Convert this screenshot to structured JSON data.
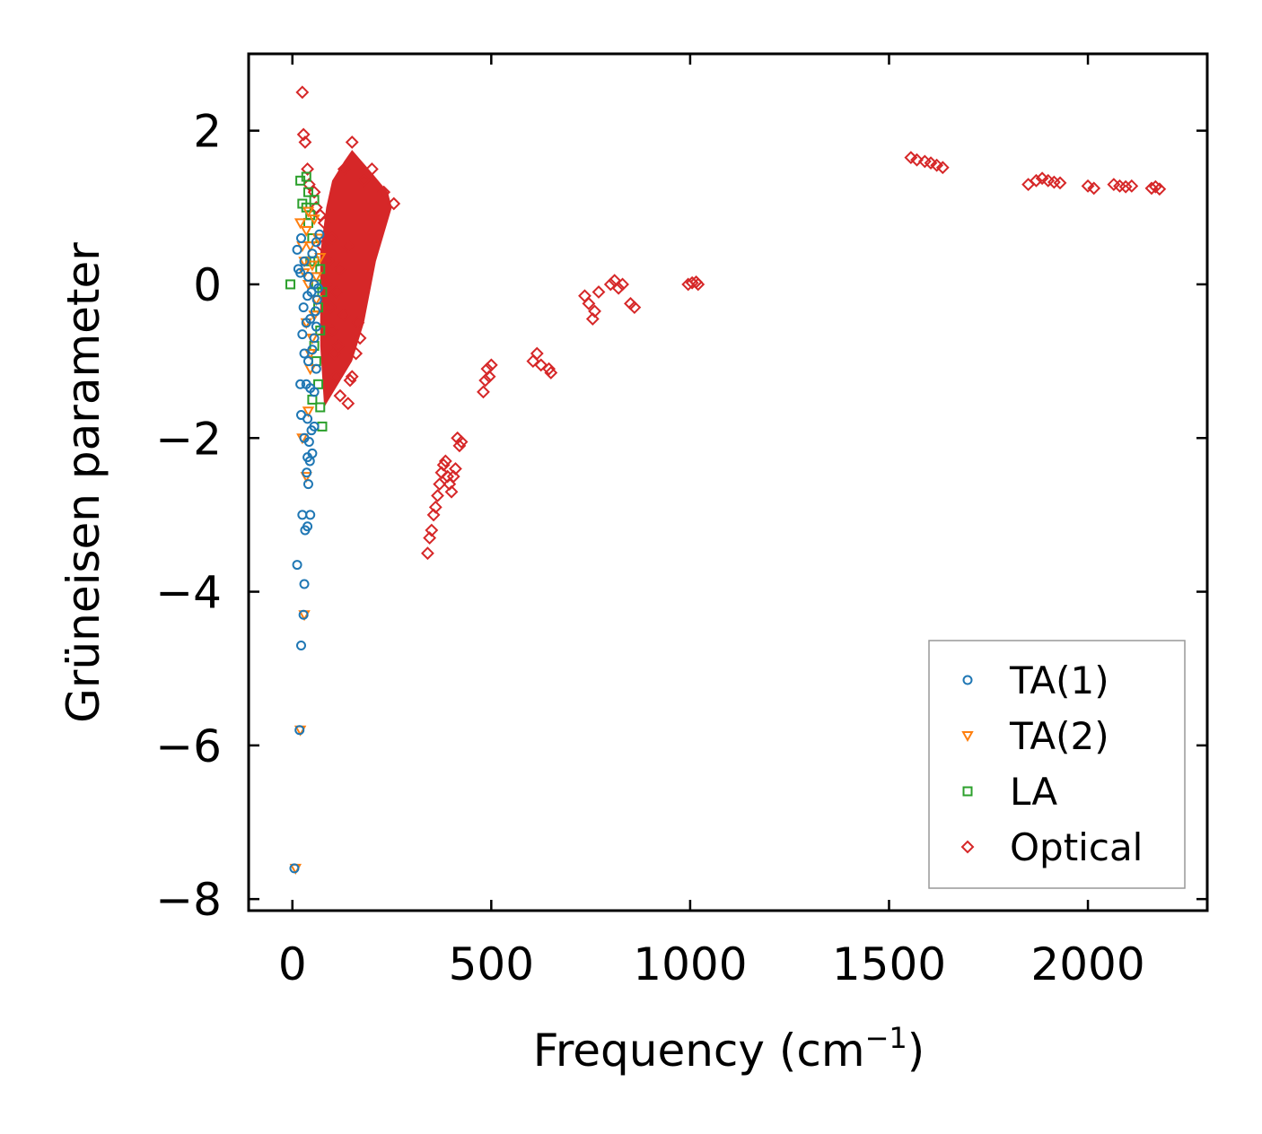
{
  "chart_data": {
    "type": "scatter",
    "xlabel": "Frequency (cm",
    "xlabel_sup": "−1",
    "xlabel_end": ")",
    "ylabel": "Grüneisen parameter",
    "xlim": [
      -110,
      2300
    ],
    "ylim": [
      -8.15,
      3.0
    ],
    "xticks": [
      0,
      500,
      1000,
      1500,
      2000
    ],
    "xtick_labels": [
      "0",
      "500",
      "1000",
      "1500",
      "2000"
    ],
    "yticks": [
      -8,
      -6,
      -4,
      -2,
      0,
      2
    ],
    "ytick_labels": [
      "−8",
      "−6",
      "−4",
      "−2",
      "0",
      "2"
    ],
    "legend_position": "bottom-right",
    "series": [
      {
        "name": "TA(1)",
        "marker": "circle",
        "color": "#1f77b4",
        "points": [
          [
            5,
            -7.6
          ],
          [
            18,
            -5.8
          ],
          [
            22,
            -4.7
          ],
          [
            30,
            -3.9
          ],
          [
            12,
            -3.65
          ],
          [
            28,
            -4.3
          ],
          [
            25,
            -3.0
          ],
          [
            32,
            -3.2
          ],
          [
            38,
            -3.15
          ],
          [
            45,
            -3.0
          ],
          [
            40,
            -2.6
          ],
          [
            36,
            -2.45
          ],
          [
            44,
            -2.3
          ],
          [
            50,
            -2.2
          ],
          [
            38,
            -2.25
          ],
          [
            30,
            -2.0
          ],
          [
            42,
            -2.05
          ],
          [
            48,
            -1.9
          ],
          [
            55,
            -1.85
          ],
          [
            22,
            -1.7
          ],
          [
            38,
            -1.75
          ],
          [
            20,
            -1.3
          ],
          [
            35,
            -1.3
          ],
          [
            45,
            -1.35
          ],
          [
            55,
            -1.4
          ],
          [
            60,
            -1.1
          ],
          [
            30,
            -0.9
          ],
          [
            40,
            -1.0
          ],
          [
            50,
            -0.85
          ],
          [
            55,
            -0.7
          ],
          [
            60,
            -0.55
          ],
          [
            25,
            -0.65
          ],
          [
            35,
            -0.5
          ],
          [
            45,
            -0.45
          ],
          [
            58,
            -0.35
          ],
          [
            62,
            -0.2
          ],
          [
            28,
            -0.3
          ],
          [
            38,
            -0.15
          ],
          [
            48,
            -0.1
          ],
          [
            65,
            -0.05
          ],
          [
            55,
            0.0
          ],
          [
            20,
            0.15
          ],
          [
            30,
            0.3
          ],
          [
            40,
            0.1
          ],
          [
            12,
            0.45
          ],
          [
            22,
            0.6
          ],
          [
            50,
            0.4
          ],
          [
            60,
            0.55
          ],
          [
            68,
            0.65
          ],
          [
            15,
            0.2
          ]
        ]
      },
      {
        "name": "TA(2)",
        "marker": "triangle-down",
        "color": "#ff7f0e",
        "points": [
          [
            8,
            -7.6
          ],
          [
            20,
            -5.8
          ],
          [
            30,
            -4.3
          ],
          [
            35,
            -2.5
          ],
          [
            25,
            -2.0
          ],
          [
            40,
            -1.65
          ],
          [
            45,
            -1.1
          ],
          [
            50,
            -0.7
          ],
          [
            55,
            -0.4
          ],
          [
            35,
            -0.5
          ],
          [
            40,
            0.0
          ],
          [
            60,
            0.1
          ],
          [
            30,
            0.3
          ],
          [
            25,
            0.5
          ],
          [
            45,
            0.5
          ],
          [
            65,
            0.6
          ],
          [
            20,
            0.8
          ],
          [
            35,
            0.7
          ],
          [
            55,
            0.85
          ],
          [
            40,
            0.95
          ],
          [
            30,
            0.15
          ],
          [
            50,
            0.25
          ],
          [
            70,
            0.35
          ],
          [
            60,
            -0.2
          ],
          [
            45,
            -0.9
          ]
        ]
      },
      {
        "name": "LA",
        "marker": "square",
        "color": "#2ca02c",
        "points": [
          [
            -5,
            0.0
          ],
          [
            20,
            1.35
          ],
          [
            25,
            1.05
          ],
          [
            35,
            1.0
          ],
          [
            40,
            1.2
          ],
          [
            45,
            0.9
          ],
          [
            50,
            0.6
          ],
          [
            55,
            0.3
          ],
          [
            60,
            0.0
          ],
          [
            65,
            -0.3
          ],
          [
            70,
            -0.6
          ],
          [
            60,
            -1.0
          ],
          [
            65,
            -1.3
          ],
          [
            70,
            -1.6
          ],
          [
            75,
            -1.85
          ],
          [
            50,
            -1.5
          ],
          [
            55,
            -0.8
          ],
          [
            45,
            0.3
          ],
          [
            40,
            0.8
          ],
          [
            70,
            0.2
          ],
          [
            75,
            -0.1
          ],
          [
            35,
            1.4
          ],
          [
            55,
            1.1
          ]
        ]
      },
      {
        "name": "Optical",
        "marker": "diamond",
        "color": "#d62728",
        "points": [
          [
            25,
            2.5
          ],
          [
            28,
            1.95
          ],
          [
            32,
            1.85
          ],
          [
            38,
            1.5
          ],
          [
            42,
            1.3
          ],
          [
            55,
            1.2
          ],
          [
            60,
            1.0
          ],
          [
            70,
            0.9
          ],
          [
            80,
            0.8
          ],
          [
            75,
            0.5
          ],
          [
            90,
            0.3
          ],
          [
            85,
            0.0
          ],
          [
            95,
            -0.3
          ],
          [
            100,
            -0.6
          ],
          [
            105,
            -0.9
          ],
          [
            110,
            -1.2
          ],
          [
            120,
            -1.45
          ],
          [
            140,
            -1.55
          ],
          [
            150,
            -1.2
          ],
          [
            145,
            -1.25
          ],
          [
            160,
            -0.9
          ],
          [
            170,
            -0.7
          ],
          [
            165,
            -0.5
          ],
          [
            150,
            1.85
          ],
          [
            200,
            1.5
          ],
          [
            230,
            1.2
          ],
          [
            255,
            1.05
          ],
          [
            130,
            1.5
          ],
          [
            180,
            1.35
          ],
          [
            140,
            0.5
          ],
          [
            120,
            0.2
          ],
          [
            110,
            -0.1
          ],
          [
            100,
            0.6
          ],
          [
            130,
            -0.4
          ],
          [
            115,
            -0.8
          ],
          [
            340,
            -3.5
          ],
          [
            350,
            -3.2
          ],
          [
            360,
            -2.9
          ],
          [
            370,
            -2.6
          ],
          [
            380,
            -2.35
          ],
          [
            390,
            -2.5
          ],
          [
            400,
            -2.7
          ],
          [
            410,
            -2.4
          ],
          [
            420,
            -2.1
          ],
          [
            415,
            -2.0
          ],
          [
            345,
            -3.3
          ],
          [
            355,
            -3.0
          ],
          [
            365,
            -2.75
          ],
          [
            375,
            -2.45
          ],
          [
            385,
            -2.3
          ],
          [
            395,
            -2.6
          ],
          [
            405,
            -2.5
          ],
          [
            425,
            -2.05
          ],
          [
            480,
            -1.4
          ],
          [
            485,
            -1.25
          ],
          [
            490,
            -1.1
          ],
          [
            495,
            -1.2
          ],
          [
            500,
            -1.05
          ],
          [
            605,
            -1.0
          ],
          [
            615,
            -0.9
          ],
          [
            625,
            -1.05
          ],
          [
            645,
            -1.1
          ],
          [
            650,
            -1.15
          ],
          [
            735,
            -0.15
          ],
          [
            745,
            -0.25
          ],
          [
            755,
            -0.45
          ],
          [
            760,
            -0.35
          ],
          [
            770,
            -0.1
          ],
          [
            800,
            0.0
          ],
          [
            810,
            0.05
          ],
          [
            820,
            -0.05
          ],
          [
            830,
            0.0
          ],
          [
            850,
            -0.25
          ],
          [
            860,
            -0.3
          ],
          [
            995,
            0.0
          ],
          [
            1005,
            0.02
          ],
          [
            1015,
            0.03
          ],
          [
            1020,
            0.0
          ],
          [
            1555,
            1.65
          ],
          [
            1570,
            1.62
          ],
          [
            1590,
            1.6
          ],
          [
            1605,
            1.58
          ],
          [
            1620,
            1.55
          ],
          [
            1635,
            1.52
          ],
          [
            1850,
            1.3
          ],
          [
            1870,
            1.35
          ],
          [
            1885,
            1.38
          ],
          [
            1900,
            1.35
          ],
          [
            1915,
            1.33
          ],
          [
            1930,
            1.32
          ],
          [
            2000,
            1.28
          ],
          [
            2015,
            1.25
          ],
          [
            2065,
            1.3
          ],
          [
            2080,
            1.28
          ],
          [
            2095,
            1.27
          ],
          [
            2110,
            1.28
          ],
          [
            2160,
            1.25
          ],
          [
            2170,
            1.27
          ],
          [
            2180,
            1.24
          ]
        ]
      }
    ]
  }
}
